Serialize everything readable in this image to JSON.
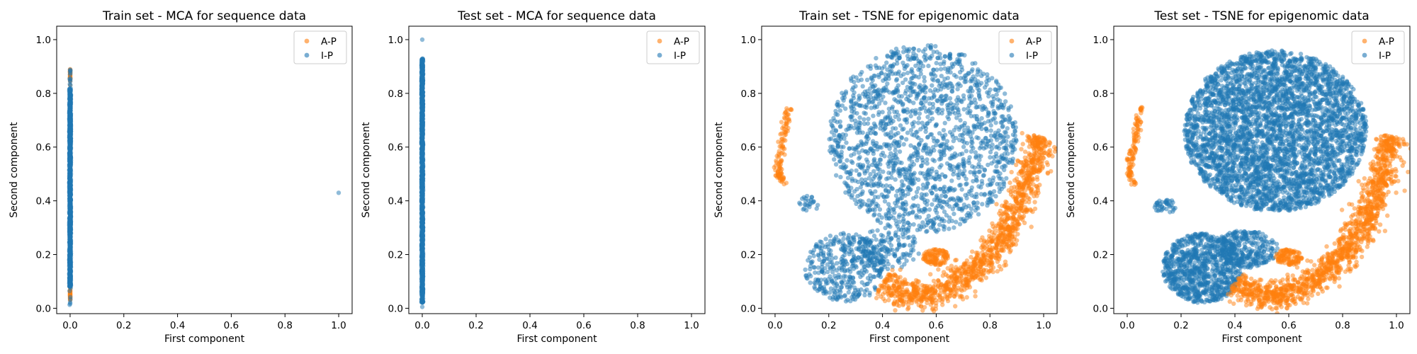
{
  "colors": {
    "A-P": "#ff7f0e",
    "I-P": "#1f77b4"
  },
  "chart_data": [
    {
      "type": "scatter",
      "title": "Train set - MCA for sequence data",
      "xlabel": "First component",
      "ylabel": "Second component",
      "xlim": [
        -0.05,
        1.05
      ],
      "ylim": [
        -0.02,
        1.05
      ],
      "xticks": [
        "0.0",
        "0.2",
        "0.4",
        "0.6",
        "0.8",
        "1.0"
      ],
      "yticks": [
        "0.0",
        "0.2",
        "0.4",
        "0.6",
        "0.8",
        "1.0"
      ],
      "legend": {
        "position": "upper right",
        "entries": [
          "A-P",
          "I-P"
        ]
      },
      "grid": false,
      "series": [
        {
          "name": "A-P",
          "regions": [
            {
              "x": [
                0.0,
                0.0
              ],
              "y": [
                0.03,
                0.1
              ],
              "n": 40
            },
            {
              "x": [
                0.0,
                0.0
              ],
              "y": [
                0.83,
                0.89
              ],
              "n": 25
            }
          ]
        },
        {
          "name": "I-P",
          "regions": [
            {
              "x": [
                -0.003,
                0.003
              ],
              "y": [
                0.08,
                0.82
              ],
              "n": 900
            },
            {
              "x": [
                -0.002,
                0.002
              ],
              "y": [
                0.01,
                0.89
              ],
              "n": 120
            }
          ],
          "points": [
            [
              1.0,
              0.43
            ]
          ]
        }
      ]
    },
    {
      "type": "scatter",
      "title": "Test set - MCA for sequence data",
      "xlabel": "First component",
      "ylabel": "Second component",
      "xlim": [
        -0.05,
        1.05
      ],
      "ylim": [
        -0.02,
        1.05
      ],
      "xticks": [
        "0.0",
        "0.2",
        "0.4",
        "0.6",
        "0.8",
        "1.0"
      ],
      "yticks": [
        "0.0",
        "0.2",
        "0.4",
        "0.6",
        "0.8",
        "1.0"
      ],
      "legend": {
        "position": "upper right",
        "entries": [
          "A-P",
          "I-P"
        ]
      },
      "grid": false,
      "series": [
        {
          "name": "A-P",
          "regions": [
            {
              "x": [
                0.0,
                0.0
              ],
              "y": [
                0.05,
                0.9
              ],
              "n": 30
            }
          ]
        },
        {
          "name": "I-P",
          "regions": [
            {
              "x": [
                -0.003,
                0.003
              ],
              "y": [
                0.02,
                0.93
              ],
              "n": 1100
            }
          ],
          "points": [
            [
              0.0,
              1.0
            ],
            [
              0.0,
              0.005
            ]
          ]
        }
      ]
    },
    {
      "type": "scatter",
      "title": "Train set - TSNE for epigenomic data",
      "xlabel": "First component",
      "ylabel": "Second component",
      "xlim": [
        -0.05,
        1.05
      ],
      "ylim": [
        -0.02,
        1.05
      ],
      "xticks": [
        "0.0",
        "0.2",
        "0.4",
        "0.6",
        "0.8",
        "1.0"
      ],
      "yticks": [
        "0.0",
        "0.2",
        "0.4",
        "0.6",
        "0.8",
        "1.0"
      ],
      "legend": {
        "position": "upper right",
        "entries": [
          "A-P",
          "I-P"
        ]
      },
      "grid": false,
      "series": [
        {
          "name": "I-P",
          "regions": [
            {
              "shape": "ellipse",
              "cx": 0.55,
              "cy": 0.63,
              "rx": 0.35,
              "ry": 0.35,
              "n": 1700
            },
            {
              "shape": "ellipse",
              "cx": 0.26,
              "cy": 0.15,
              "rx": 0.15,
              "ry": 0.13,
              "n": 380
            },
            {
              "shape": "ellipse",
              "cx": 0.42,
              "cy": 0.22,
              "rx": 0.12,
              "ry": 0.08,
              "n": 150
            },
            {
              "shape": "ellipse",
              "cx": 0.13,
              "cy": 0.39,
              "rx": 0.04,
              "ry": 0.03,
              "n": 25
            }
          ]
        },
        {
          "name": "A-P",
          "regions": [
            {
              "shape": "band",
              "path": [
                [
                  0.98,
                  0.64
                ],
                [
                  0.95,
                  0.5
                ],
                [
                  0.9,
                  0.36
                ],
                [
                  0.82,
                  0.22
                ],
                [
                  0.72,
                  0.12
                ],
                [
                  0.62,
                  0.06
                ],
                [
                  0.52,
                  0.04
                ],
                [
                  0.45,
                  0.06
                ],
                [
                  0.4,
                  0.1
                ]
              ],
              "width": 0.045,
              "n": 1200
            },
            {
              "shape": "band",
              "path": [
                [
                  0.05,
                  0.75
                ],
                [
                  0.035,
                  0.66
                ],
                [
                  0.02,
                  0.58
                ],
                [
                  0.01,
                  0.5
                ],
                [
                  0.03,
                  0.46
                ]
              ],
              "width": 0.012,
              "n": 110
            },
            {
              "shape": "ellipse",
              "cx": 0.6,
              "cy": 0.19,
              "rx": 0.05,
              "ry": 0.03,
              "n": 110
            }
          ]
        }
      ]
    },
    {
      "type": "scatter",
      "title": "Test set - TSNE for epigenomic data",
      "xlabel": "First component",
      "ylabel": "Second component",
      "xlim": [
        -0.05,
        1.05
      ],
      "ylim": [
        -0.02,
        1.05
      ],
      "xticks": [
        "0.0",
        "0.2",
        "0.4",
        "0.6",
        "0.8",
        "1.0"
      ],
      "yticks": [
        "0.0",
        "0.2",
        "0.4",
        "0.6",
        "0.8",
        "1.0"
      ],
      "legend": {
        "position": "upper right",
        "entries": [
          "A-P",
          "I-P"
        ]
      },
      "grid": false,
      "series": [
        {
          "name": "I-P",
          "regions": [
            {
              "shape": "ellipse",
              "cx": 0.55,
              "cy": 0.66,
              "rx": 0.34,
              "ry": 0.3,
              "n": 3800
            },
            {
              "shape": "ellipse",
              "cx": 0.28,
              "cy": 0.15,
              "rx": 0.15,
              "ry": 0.13,
              "n": 900
            },
            {
              "shape": "ellipse",
              "cx": 0.44,
              "cy": 0.22,
              "rx": 0.12,
              "ry": 0.07,
              "n": 300
            },
            {
              "shape": "ellipse",
              "cx": 0.14,
              "cy": 0.38,
              "rx": 0.04,
              "ry": 0.03,
              "n": 40
            }
          ]
        },
        {
          "name": "A-P",
          "regions": [
            {
              "shape": "band",
              "path": [
                [
                  0.98,
                  0.64
                ],
                [
                  0.95,
                  0.5
                ],
                [
                  0.9,
                  0.36
                ],
                [
                  0.82,
                  0.22
                ],
                [
                  0.72,
                  0.12
                ],
                [
                  0.62,
                  0.06
                ],
                [
                  0.52,
                  0.04
                ],
                [
                  0.45,
                  0.06
                ],
                [
                  0.4,
                  0.1
                ]
              ],
              "width": 0.045,
              "n": 1300
            },
            {
              "shape": "band",
              "path": [
                [
                  0.05,
                  0.75
                ],
                [
                  0.035,
                  0.66
                ],
                [
                  0.02,
                  0.58
                ],
                [
                  0.01,
                  0.5
                ],
                [
                  0.03,
                  0.46
                ]
              ],
              "width": 0.012,
              "n": 110
            },
            {
              "shape": "ellipse",
              "cx": 0.6,
              "cy": 0.19,
              "rx": 0.05,
              "ry": 0.03,
              "n": 110
            }
          ]
        }
      ]
    }
  ]
}
